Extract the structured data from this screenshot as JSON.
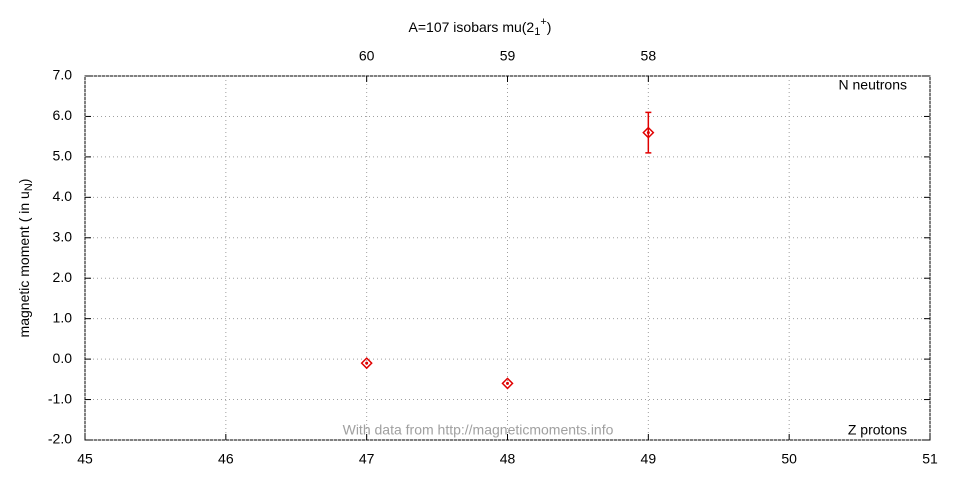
{
  "chart_data": {
    "type": "scatter",
    "title": {
      "main": "A=107 isobars mu(2",
      "sub": "1",
      "sup": "+",
      "end": ")"
    },
    "ylabel": {
      "main": "magnetic moment ( in u",
      "sub": "N",
      "end": ")"
    },
    "x2label": "N neutrons",
    "xlabel": "Z protons",
    "watermark": "With data from http://magneticmoments.info",
    "xlim": [
      45,
      51
    ],
    "xticks": [
      45,
      46,
      47,
      48,
      49,
      50,
      51
    ],
    "x2ticks": [
      {
        "value": 47,
        "label": "60"
      },
      {
        "value": 48,
        "label": "59"
      },
      {
        "value": 49,
        "label": "58"
      }
    ],
    "ylim": [
      -2,
      7
    ],
    "yticks": [
      {
        "value": -2,
        "label": "-2.0"
      },
      {
        "value": -1,
        "label": "-1.0"
      },
      {
        "value": 0,
        "label": "0.0"
      },
      {
        "value": 1,
        "label": "1.0"
      },
      {
        "value": 2,
        "label": "2.0"
      },
      {
        "value": 3,
        "label": "3.0"
      },
      {
        "value": 4,
        "label": "4.0"
      },
      {
        "value": 5,
        "label": "5.0"
      },
      {
        "value": 6,
        "label": "6.0"
      },
      {
        "value": 7,
        "label": "7.0"
      }
    ],
    "grid": true,
    "series": [
      {
        "color": "#e00000",
        "x": [
          47,
          48,
          49
        ],
        "values": [
          -0.1,
          -0.6,
          5.6
        ],
        "errors": [
          null,
          null,
          0.5
        ]
      }
    ]
  }
}
